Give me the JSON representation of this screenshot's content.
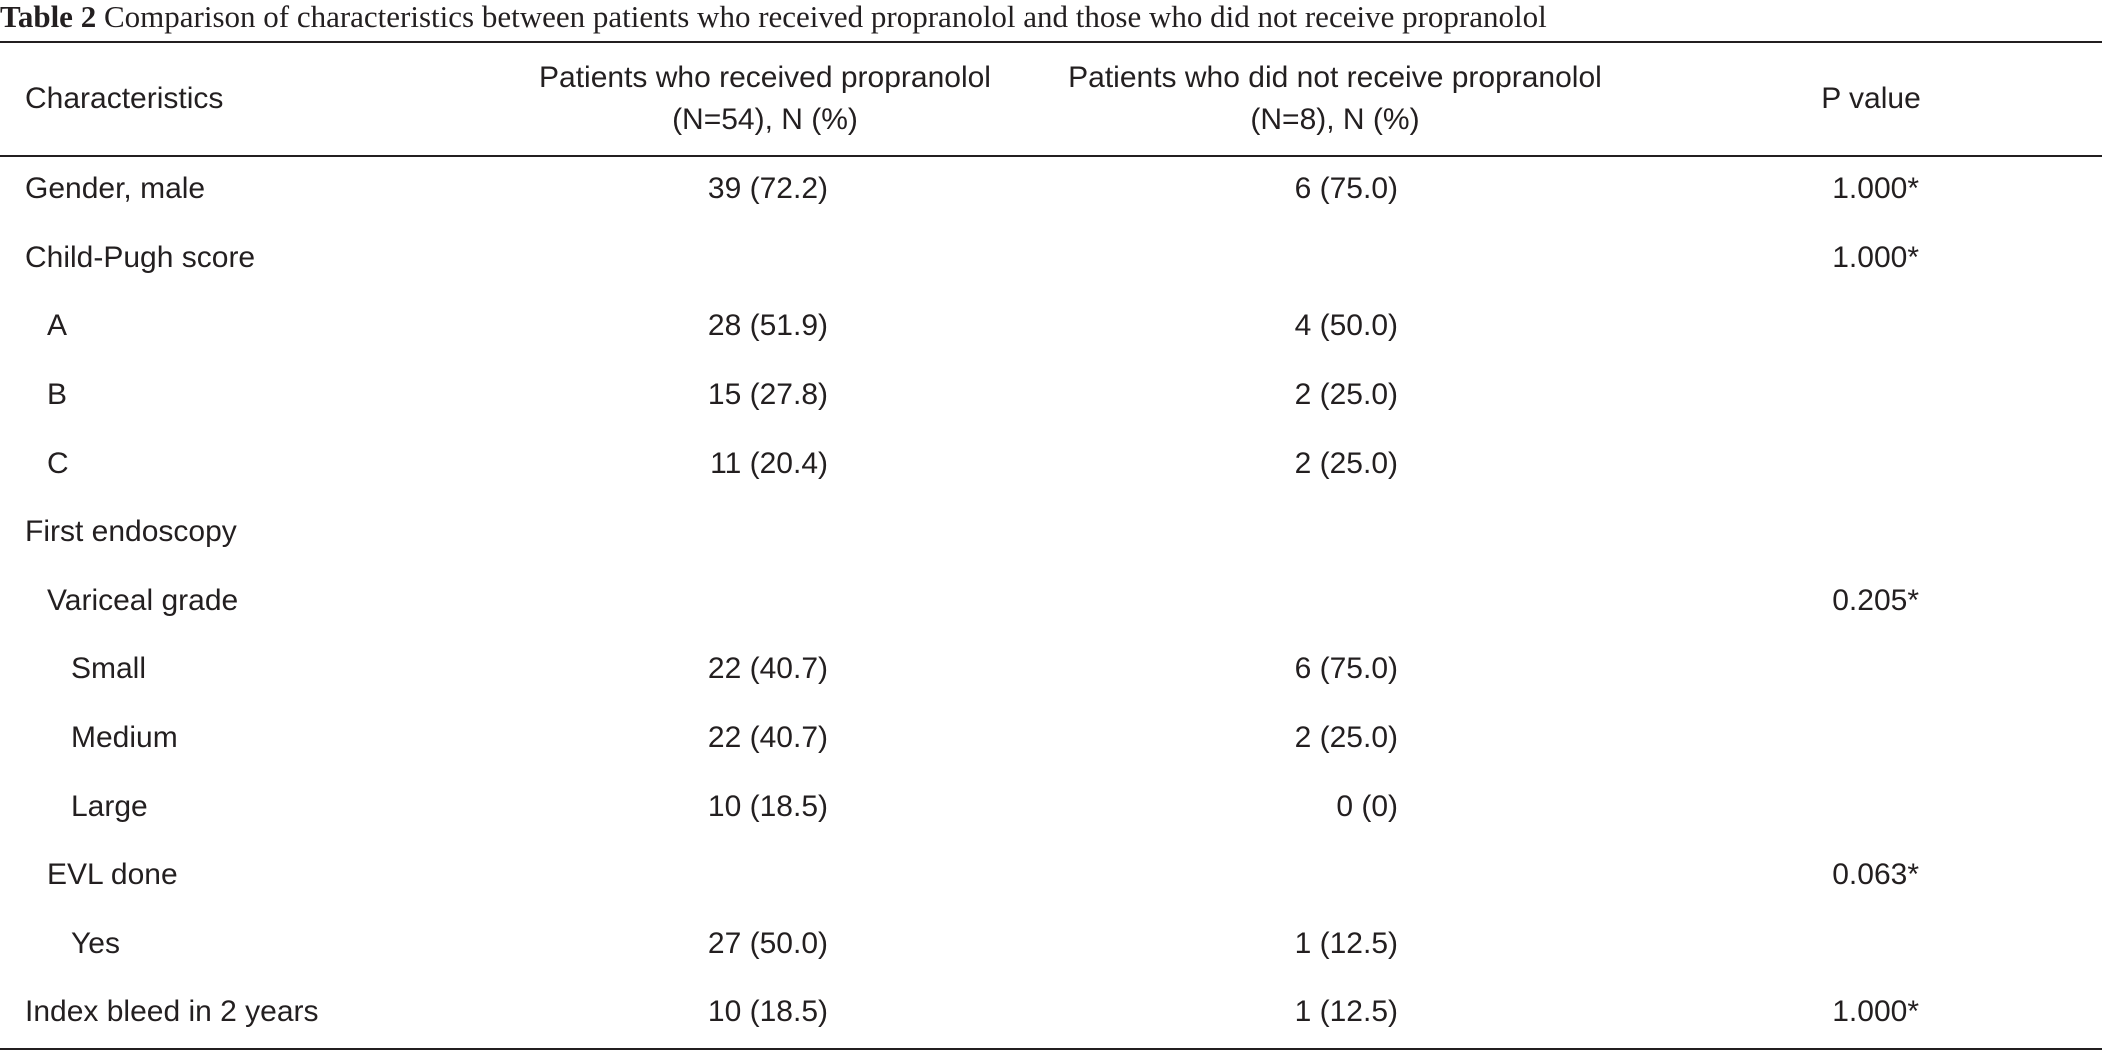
{
  "caption": {
    "label": "Table 2",
    "text": "Comparison of characteristics between patients who received propranolol and those who did not receive propranolol"
  },
  "header": {
    "characteristics": "Characteristics",
    "group1_line1": "Patients who received propranolol",
    "group1_line2": "(N=54), N (%)",
    "group2_line1": "Patients who did not receive propranolol",
    "group2_line2": "(N=8), N (%)",
    "p_value": "P value"
  },
  "rows": [
    {
      "label": "Gender, male",
      "level": 0,
      "g1": "39 (72.2)",
      "g2": "6 (75.0)",
      "p": "1.000*"
    },
    {
      "label": "Child-Pugh score",
      "level": 0,
      "g1": "",
      "g2": "",
      "p": "1.000*"
    },
    {
      "label": "A",
      "level": 1,
      "g1": "28 (51.9)",
      "g2": "4 (50.0)",
      "p": ""
    },
    {
      "label": "B",
      "level": 1,
      "g1": "15 (27.8)",
      "g2": "2 (25.0)",
      "p": ""
    },
    {
      "label": "C",
      "level": 1,
      "g1": "11 (20.4)",
      "g2": "2 (25.0)",
      "p": ""
    },
    {
      "label": "First endoscopy",
      "level": 0,
      "g1": "",
      "g2": "",
      "p": ""
    },
    {
      "label": "Variceal grade",
      "level": 1,
      "g1": "",
      "g2": "",
      "p": "0.205*"
    },
    {
      "label": "Small",
      "level": 2,
      "g1": "22 (40.7)",
      "g2": "6 (75.0)",
      "p": ""
    },
    {
      "label": "Medium",
      "level": 2,
      "g1": "22 (40.7)",
      "g2": "2 (25.0)",
      "p": ""
    },
    {
      "label": "Large",
      "level": 2,
      "g1": "10 (18.5)",
      "g2": "0 (0)",
      "p": ""
    },
    {
      "label": "EVL done",
      "level": 1,
      "g1": "",
      "g2": "",
      "p": "0.063*"
    },
    {
      "label": "Yes",
      "level": 2,
      "g1": "27 (50.0)",
      "g2": "1 (12.5)",
      "p": ""
    },
    {
      "label": "Index bleed in 2 years",
      "level": 0,
      "g1": "10 (18.5)",
      "g2": "1 (12.5)",
      "p": "1.000*"
    }
  ]
}
